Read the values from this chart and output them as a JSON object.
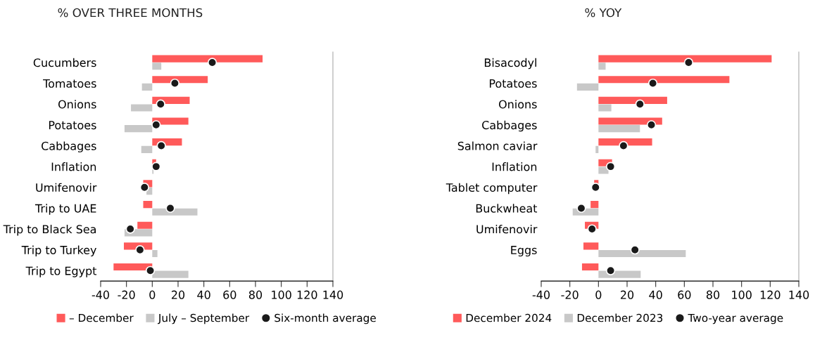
{
  "chart_data": [
    {
      "type": "bar",
      "orientation": "horizontal",
      "title": "% OVER THREE MONTHS",
      "categories": [
        "Cucumbers",
        "Tomatoes",
        "Onions",
        "Potatoes",
        "Cabbages",
        "Inflation",
        "Umifenovir",
        "Trip to UAE",
        "Trip to Black Sea",
        "Trip to Turkey",
        "Trip to Egypt"
      ],
      "series": [
        {
          "name": "– December",
          "color": "#ff5a5a",
          "values": [
            85.5,
            43,
            29,
            28,
            23,
            3,
            -7,
            -7,
            -11.5,
            -22,
            -30
          ]
        },
        {
          "name": "July – September",
          "color": "#c8c8c8",
          "values": [
            7,
            -8,
            -16.5,
            -21.5,
            -8.5,
            1,
            -4.5,
            35,
            -21.5,
            4,
            28
          ]
        },
        {
          "name": "Six-month average",
          "type": "scatter",
          "color": "#1a1a1a",
          "values": [
            46.5,
            17.5,
            6.5,
            3,
            7,
            3,
            -6,
            14,
            -17,
            -9.5,
            -1.5
          ]
        }
      ],
      "xlim": [
        -40,
        140
      ],
      "xticks": [
        -40,
        -20,
        0,
        20,
        40,
        60,
        80,
        100,
        120,
        140
      ],
      "grid": false,
      "legend": "bottom",
      "marker": "circle"
    },
    {
      "type": "bar",
      "orientation": "horizontal",
      "title": "% YOY",
      "categories": [
        "Bisacodyl",
        "Potatoes",
        "Onions",
        "Cabbages",
        "Salmon caviar",
        "Inflation",
        "Tablet computer",
        "Buckwheat",
        "Umifenovir",
        "Eggs",
        null
      ],
      "series": [
        {
          "name": "December 2024",
          "color": "#ff5a5a",
          "values": [
            121,
            91.5,
            48,
            44.5,
            37.5,
            9.5,
            -3,
            -5.5,
            -9.5,
            -10.5,
            -11.5
          ]
        },
        {
          "name": "December 2023",
          "color": "#c8c8c8",
          "values": [
            5,
            -15,
            9,
            29,
            -2,
            7,
            null,
            -18,
            null,
            61,
            29.5
          ]
        },
        {
          "name": "Two-year average",
          "type": "scatter",
          "color": "#1a1a1a",
          "values": [
            63,
            38,
            29,
            37,
            17.5,
            8.5,
            -2,
            -12,
            -4.5,
            25.5,
            8.5
          ]
        }
      ],
      "xlim": [
        -40,
        140
      ],
      "xticks": [
        -40,
        -20,
        0,
        20,
        40,
        60,
        80,
        100,
        120,
        140
      ],
      "grid": false,
      "legend": "bottom",
      "marker": "circle"
    }
  ]
}
